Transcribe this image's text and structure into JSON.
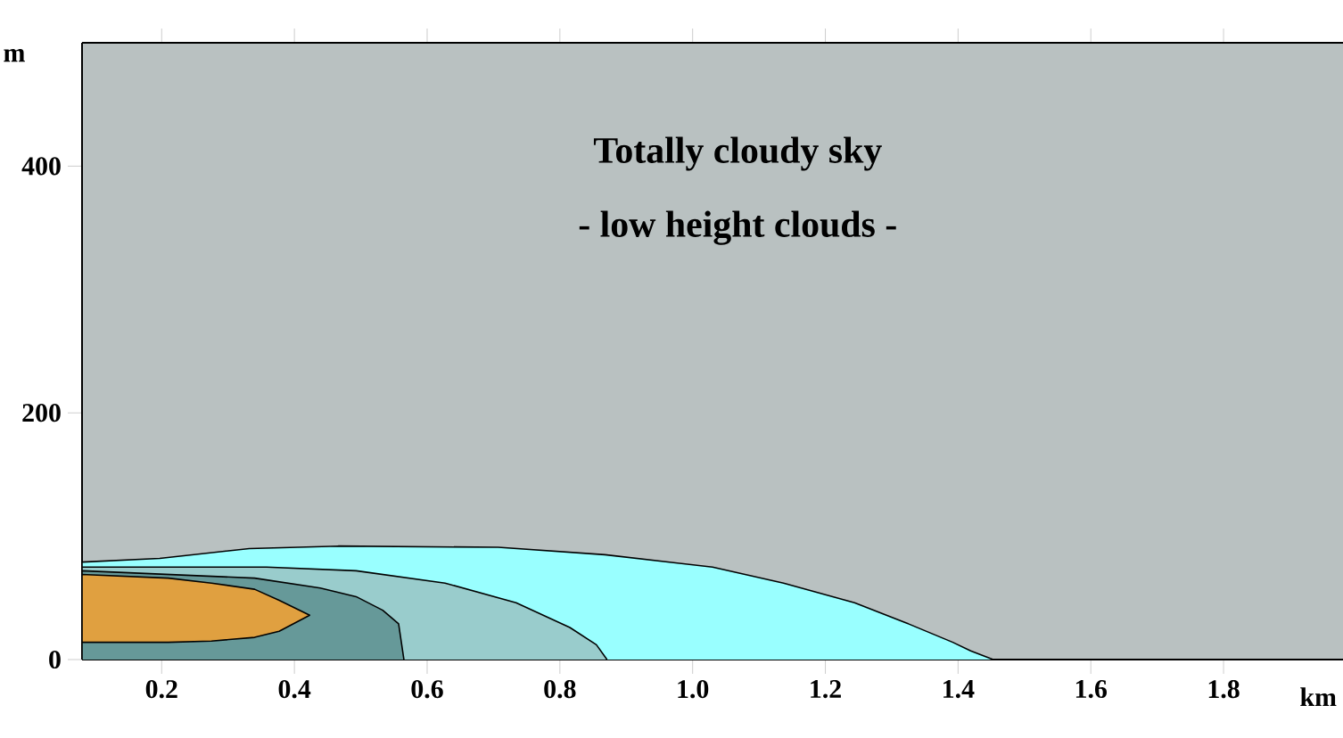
{
  "chart_data": {
    "type": "area",
    "title": "Totally cloudy sky",
    "subtitle": "- low height clouds -",
    "xlabel": "km",
    "ylabel": "m",
    "xlim": [
      0.08,
      1.98
    ],
    "ylim": [
      0,
      500
    ],
    "xticks": [
      0.2,
      0.4,
      0.6,
      0.8,
      {
        "value": 1,
        "label": "1.0"
      },
      1.2,
      1.4,
      1.6,
      1.8
    ],
    "yticks": [
      0,
      200,
      400
    ],
    "series": [
      {
        "color": "#99ffff",
        "x": [
          0.08,
          0.197,
          0.332,
          0.466,
          0.707,
          0.868,
          1.03,
          1.137,
          1.244,
          1.325,
          1.392,
          1.419,
          1.453
        ],
        "values": [
          79,
          82,
          90,
          92,
          91,
          85,
          75,
          62,
          46,
          29,
          14,
          7,
          0
        ]
      },
      {
        "color": "#99cccc",
        "x": [
          0.08,
          0.358,
          0.493,
          0.627,
          0.734,
          0.815,
          0.855,
          0.871
        ],
        "values": [
          75,
          75,
          72,
          62,
          46,
          26,
          12,
          0
        ]
      },
      {
        "color": "#669999",
        "x": [
          0.08,
          0.34,
          0.439,
          0.493,
          0.533,
          0.557,
          0.565
        ],
        "values": [
          72,
          66,
          58,
          51,
          40,
          29,
          0
        ]
      },
      {
        "color": "#e0a040",
        "x": [
          0.08,
          0.21,
          0.275,
          0.34,
          0.377,
          0.423,
          0.377,
          0.34,
          0.275,
          0.21,
          0.08
        ],
        "values": [
          69,
          66,
          62,
          57,
          48,
          36,
          23,
          18,
          15,
          14,
          14
        ]
      }
    ]
  }
}
